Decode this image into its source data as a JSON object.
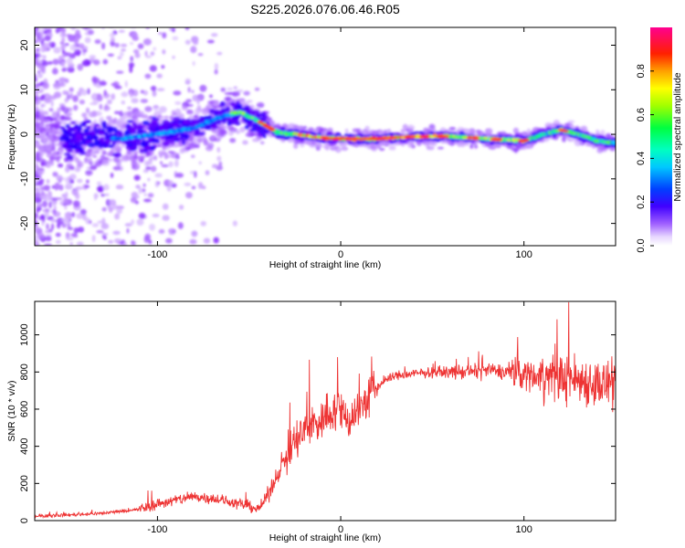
{
  "title": "S225.2026.076.06.46.R05",
  "chart_data": [
    {
      "type": "heatmap",
      "xlabel": "Height of straight line (km)",
      "ylabel": "Frequency (Hz)",
      "xlim": [
        -167,
        150
      ],
      "ylim": [
        -25,
        24
      ],
      "x_ticks": [
        -100,
        0,
        100
      ],
      "y_ticks": [
        -20,
        -10,
        0,
        10,
        20
      ],
      "colorbar": {
        "label": "Normalized spectral amplitude",
        "range": [
          0,
          1
        ],
        "ticks": [
          0.0,
          0.2,
          0.4,
          0.6,
          0.8
        ],
        "tick_labels": [
          "0.0",
          "0.2",
          "0.4",
          "0.6",
          "0.8"
        ],
        "colors": [
          "#ffffff",
          "#c8a0ff",
          "#7a00ff",
          "#0000ff",
          "#00ffff",
          "#00ff00",
          "#ffff00",
          "#ff8000",
          "#ff0000",
          "#ff00a0"
        ]
      },
      "ridge": {
        "x": [
          -120,
          -100,
          -80,
          -65,
          -55,
          -45,
          -35,
          -25,
          -15,
          -5,
          0,
          20,
          40,
          60,
          80,
          100,
          110,
          120,
          130,
          140,
          150
        ],
        "frequency": [
          -1,
          0,
          1.5,
          4,
          5,
          3,
          0.5,
          0,
          -0.5,
          -1,
          -1,
          -1,
          -0.5,
          -0.5,
          -1,
          -1.5,
          0,
          1,
          0,
          -1.5,
          -2
        ]
      }
    },
    {
      "type": "line",
      "xlabel": "Height of straight line (km)",
      "ylabel": "SNR (10 * v/v)",
      "xlim": [
        -167,
        150
      ],
      "ylim": [
        0,
        1180
      ],
      "x_ticks": [
        -100,
        0,
        100
      ],
      "y_ticks": [
        0,
        200,
        400,
        600,
        800,
        1000
      ],
      "color": "#ee3333",
      "series": [
        {
          "x": [
            -167,
            -150,
            -130,
            -110,
            -100,
            -90,
            -80,
            -70,
            -60,
            -50,
            -45,
            -40,
            -35,
            -30,
            -25,
            -20,
            -15,
            -10,
            -5,
            0,
            5,
            10,
            15,
            20,
            25,
            30,
            40,
            50,
            60,
            70,
            80,
            90,
            100,
            110,
            120,
            130,
            140,
            150
          ],
          "values": [
            25,
            30,
            40,
            60,
            90,
            110,
            130,
            120,
            100,
            80,
            60,
            130,
            240,
            340,
            420,
            480,
            520,
            540,
            600,
            580,
            550,
            600,
            660,
            720,
            760,
            780,
            790,
            800,
            800,
            800,
            810,
            800,
            790,
            780,
            770,
            760,
            740,
            720
          ]
        }
      ]
    }
  ]
}
